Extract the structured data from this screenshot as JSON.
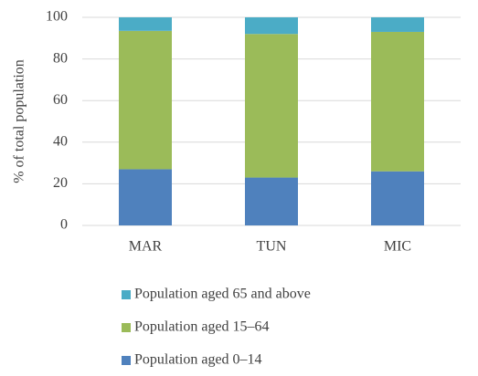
{
  "chart_data": {
    "type": "stacked_bar",
    "y_label": "% of total population",
    "categories": [
      "MAR",
      "TUN",
      "MIC"
    ],
    "series": [
      {
        "name": "Population aged 0–14",
        "color": "#4f81bd",
        "values": [
          27,
          23,
          26
        ]
      },
      {
        "name": "Population aged 15–64",
        "color": "#9bbb59",
        "values": [
          66.5,
          69,
          67
        ]
      },
      {
        "name": "Population aged 65 and above",
        "color": "#4bacc6",
        "values": [
          6.5,
          8,
          7
        ]
      }
    ],
    "ylim": [
      0,
      100
    ],
    "yticks": [
      0,
      20,
      40,
      60,
      80,
      100
    ],
    "grid": true,
    "legend": "bottom"
  }
}
